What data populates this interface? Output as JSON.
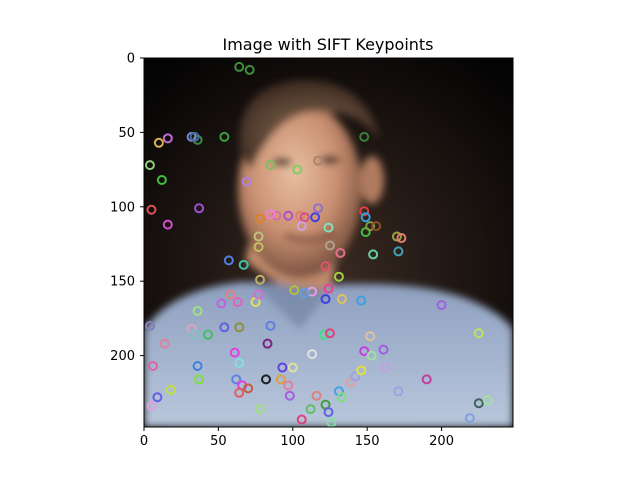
{
  "chart_data": {
    "type": "image",
    "title": "Image with SIFT Keypoints",
    "xlabel": "",
    "ylabel": "",
    "image_size": [
      248,
      248
    ],
    "xlim": [
      0,
      248
    ],
    "ylim": [
      248,
      0
    ],
    "xticks": [
      0,
      50,
      100,
      150,
      200
    ],
    "yticks": [
      0,
      50,
      100,
      150,
      200
    ],
    "grid": false,
    "keypoints": [
      {
        "x": 71,
        "y": 8,
        "color": "#3b8f3b"
      },
      {
        "x": 64,
        "y": 6,
        "color": "#3b8f3b"
      },
      {
        "x": 36,
        "y": 55,
        "color": "#3d8a3d"
      },
      {
        "x": 16,
        "y": 54,
        "color": "#c06bd0"
      },
      {
        "x": 4,
        "y": 72,
        "color": "#8fd07a"
      },
      {
        "x": 10,
        "y": 57,
        "color": "#d9b04a"
      },
      {
        "x": 12,
        "y": 82,
        "color": "#3fbf3f"
      },
      {
        "x": 32,
        "y": 53,
        "color": "#8080d0"
      },
      {
        "x": 34,
        "y": 53,
        "color": "#3e6f9f"
      },
      {
        "x": 54,
        "y": 53,
        "color": "#3e9e3e"
      },
      {
        "x": 5,
        "y": 102,
        "color": "#e05050"
      },
      {
        "x": 16,
        "y": 112,
        "color": "#d050d0"
      },
      {
        "x": 37,
        "y": 101,
        "color": "#9f4fcf"
      },
      {
        "x": 89,
        "y": 106,
        "color": "#d86fa0"
      },
      {
        "x": 85,
        "y": 72,
        "color": "#7fbf5f"
      },
      {
        "x": 103,
        "y": 75,
        "color": "#7fcf5f"
      },
      {
        "x": 117,
        "y": 69,
        "color": "#b08070"
      },
      {
        "x": 69,
        "y": 83,
        "color": "#b080e0"
      },
      {
        "x": 148,
        "y": 53,
        "color": "#3a7f3a"
      },
      {
        "x": 78,
        "y": 108,
        "color": "#e0802f"
      },
      {
        "x": 85,
        "y": 105,
        "color": "#f07fd0"
      },
      {
        "x": 97,
        "y": 106,
        "color": "#b04fd0"
      },
      {
        "x": 105,
        "y": 106,
        "color": "#e07f6f"
      },
      {
        "x": 108,
        "y": 107,
        "color": "#d04f8f"
      },
      {
        "x": 115,
        "y": 107,
        "color": "#4040e0"
      },
      {
        "x": 117,
        "y": 101,
        "color": "#8f6fd0"
      },
      {
        "x": 106,
        "y": 113,
        "color": "#d0a0e0"
      },
      {
        "x": 124,
        "y": 114,
        "color": "#80e0c0"
      },
      {
        "x": 125,
        "y": 126,
        "color": "#b0a090"
      },
      {
        "x": 132,
        "y": 131,
        "color": "#e07090"
      },
      {
        "x": 148,
        "y": 103,
        "color": "#e04040"
      },
      {
        "x": 149,
        "y": 107,
        "color": "#2f9fe0"
      },
      {
        "x": 149,
        "y": 117,
        "color": "#3fbf3f"
      },
      {
        "x": 152,
        "y": 113,
        "color": "#80a040"
      },
      {
        "x": 156,
        "y": 113,
        "color": "#8f4f2f"
      },
      {
        "x": 154,
        "y": 132,
        "color": "#60d0a0"
      },
      {
        "x": 170,
        "y": 120,
        "color": "#a0a040"
      },
      {
        "x": 173,
        "y": 121,
        "color": "#e08070"
      },
      {
        "x": 171,
        "y": 130,
        "color": "#40a0b0"
      },
      {
        "x": 77,
        "y": 120,
        "color": "#c0c080"
      },
      {
        "x": 77,
        "y": 127,
        "color": "#c0c060"
      },
      {
        "x": 57,
        "y": 136,
        "color": "#4f7fe0"
      },
      {
        "x": 67,
        "y": 139,
        "color": "#40c0a0"
      },
      {
        "x": 78,
        "y": 149,
        "color": "#c0b060"
      },
      {
        "x": 122,
        "y": 140,
        "color": "#e05070"
      },
      {
        "x": 131,
        "y": 147,
        "color": "#a0d040"
      },
      {
        "x": 124,
        "y": 155,
        "color": "#e040a0"
      },
      {
        "x": 122,
        "y": 162,
        "color": "#4040e0"
      },
      {
        "x": 113,
        "y": 157,
        "color": "#e0a0e0"
      },
      {
        "x": 108,
        "y": 158,
        "color": "#60a0e0"
      },
      {
        "x": 101,
        "y": 156,
        "color": "#b0c040"
      },
      {
        "x": 133,
        "y": 162,
        "color": "#e0c060"
      },
      {
        "x": 146,
        "y": 163,
        "color": "#3fa0e0"
      },
      {
        "x": 58,
        "y": 159,
        "color": "#e08080"
      },
      {
        "x": 52,
        "y": 165,
        "color": "#c060e0"
      },
      {
        "x": 63,
        "y": 164,
        "color": "#e060c0"
      },
      {
        "x": 75,
        "y": 164,
        "color": "#e0e060"
      },
      {
        "x": 77,
        "y": 159,
        "color": "#d070d0"
      },
      {
        "x": 36,
        "y": 170,
        "color": "#a0e080"
      },
      {
        "x": 32,
        "y": 182,
        "color": "#e0a0c0"
      },
      {
        "x": 54,
        "y": 181,
        "color": "#6060e0"
      },
      {
        "x": 64,
        "y": 181,
        "color": "#8f8f3f"
      },
      {
        "x": 85,
        "y": 180,
        "color": "#6080e0"
      },
      {
        "x": 34,
        "y": 186,
        "color": "#80c0c0"
      },
      {
        "x": 43,
        "y": 186,
        "color": "#40c060"
      },
      {
        "x": 4,
        "y": 180,
        "color": "#8080c0"
      },
      {
        "x": 14,
        "y": 192,
        "color": "#e080a0"
      },
      {
        "x": 83,
        "y": 192,
        "color": "#802080"
      },
      {
        "x": 121,
        "y": 186,
        "color": "#40e080"
      },
      {
        "x": 125,
        "y": 185,
        "color": "#e04080"
      },
      {
        "x": 113,
        "y": 199,
        "color": "#e0e0e0"
      },
      {
        "x": 152,
        "y": 187,
        "color": "#e0c0a0"
      },
      {
        "x": 148,
        "y": 197,
        "color": "#c040e0"
      },
      {
        "x": 153,
        "y": 200,
        "color": "#a0e0a0"
      },
      {
        "x": 161,
        "y": 196,
        "color": "#a060e0"
      },
      {
        "x": 162,
        "y": 208,
        "color": "#c0a0e0"
      },
      {
        "x": 200,
        "y": 166,
        "color": "#a060e0"
      },
      {
        "x": 225,
        "y": 185,
        "color": "#c0e060"
      },
      {
        "x": 61,
        "y": 198,
        "color": "#e040e0"
      },
      {
        "x": 64,
        "y": 205,
        "color": "#80e0e0"
      },
      {
        "x": 36,
        "y": 207,
        "color": "#4080e0"
      },
      {
        "x": 6,
        "y": 207,
        "color": "#e060a0"
      },
      {
        "x": 37,
        "y": 216,
        "color": "#80e040"
      },
      {
        "x": 18,
        "y": 223,
        "color": "#c0e040"
      },
      {
        "x": 9,
        "y": 228,
        "color": "#6060e0"
      },
      {
        "x": 5,
        "y": 234,
        "color": "#e0a0e0"
      },
      {
        "x": 62,
        "y": 216,
        "color": "#6080e0"
      },
      {
        "x": 66,
        "y": 220,
        "color": "#e040e0"
      },
      {
        "x": 64,
        "y": 225,
        "color": "#e06060"
      },
      {
        "x": 70,
        "y": 222,
        "color": "#c06040"
      },
      {
        "x": 82,
        "y": 216,
        "color": "#202020"
      },
      {
        "x": 92,
        "y": 216,
        "color": "#e0a040"
      },
      {
        "x": 97,
        "y": 220,
        "color": "#e080a0"
      },
      {
        "x": 98,
        "y": 227,
        "color": "#a060e0"
      },
      {
        "x": 93,
        "y": 208,
        "color": "#6040e0"
      },
      {
        "x": 100,
        "y": 208,
        "color": "#e0e0a0"
      },
      {
        "x": 78,
        "y": 236,
        "color": "#a0e080"
      },
      {
        "x": 106,
        "y": 243,
        "color": "#e04080"
      },
      {
        "x": 112,
        "y": 236,
        "color": "#60c060"
      },
      {
        "x": 116,
        "y": 227,
        "color": "#e08080"
      },
      {
        "x": 122,
        "y": 233,
        "color": "#40a040"
      },
      {
        "x": 124,
        "y": 238,
        "color": "#6060e0"
      },
      {
        "x": 126,
        "y": 245,
        "color": "#80e0a0"
      },
      {
        "x": 131,
        "y": 224,
        "color": "#40a0e0"
      },
      {
        "x": 133,
        "y": 228,
        "color": "#80e080"
      },
      {
        "x": 139,
        "y": 218,
        "color": "#e0a0a0"
      },
      {
        "x": 142,
        "y": 214,
        "color": "#a0a0e0"
      },
      {
        "x": 146,
        "y": 210,
        "color": "#e0e040"
      },
      {
        "x": 171,
        "y": 224,
        "color": "#a0a0e0"
      },
      {
        "x": 190,
        "y": 216,
        "color": "#c040a0"
      },
      {
        "x": 219,
        "y": 242,
        "color": "#80a0e0"
      },
      {
        "x": 225,
        "y": 232,
        "color": "#406060"
      },
      {
        "x": 231,
        "y": 230,
        "color": "#a0e0a0"
      }
    ]
  }
}
